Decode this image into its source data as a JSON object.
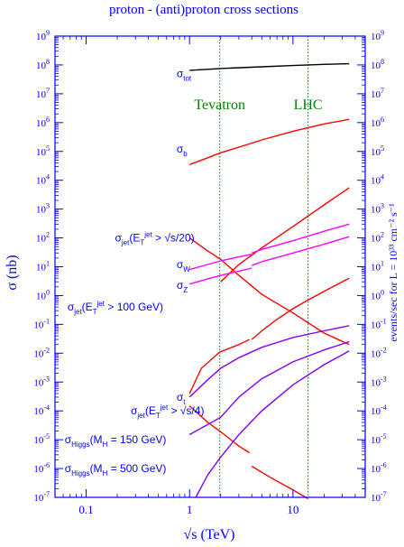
{
  "chart_data": {
    "type": "line",
    "title": "proton - (anti)proton cross sections",
    "xlabel": "√s   (TeV)",
    "ylabel_left": "σ  (nb)",
    "ylabel_right": "events/sec  for  L = 10³³ cm⁻² s⁻¹",
    "x_scale": "log",
    "y_scale": "log",
    "xlim": [
      0.05,
      50
    ],
    "ylim": [
      1e-07,
      1000000000.0
    ],
    "grid": false,
    "x_ticks": [
      {
        "value": 0.1,
        "label": "0.1"
      },
      {
        "value": 1,
        "label": "1"
      },
      {
        "value": 10,
        "label": "10"
      }
    ],
    "y_ticks_left": [
      {
        "value": 1000000000.0,
        "base": "10",
        "exp": "9"
      },
      {
        "value": 100000000.0,
        "base": "10",
        "exp": "8"
      },
      {
        "value": 10000000.0,
        "base": "10",
        "exp": "7"
      },
      {
        "value": 1000000.0,
        "base": "10",
        "exp": "6"
      },
      {
        "value": 100000.0,
        "base": "10",
        "exp": "5"
      },
      {
        "value": 10000.0,
        "base": "10",
        "exp": "4"
      },
      {
        "value": 1000.0,
        "base": "10",
        "exp": "3"
      },
      {
        "value": 100.0,
        "base": "10",
        "exp": "2"
      },
      {
        "value": 10.0,
        "base": "10",
        "exp": "1"
      },
      {
        "value": 1.0,
        "base": "10",
        "exp": "0"
      },
      {
        "value": 0.1,
        "base": "10",
        "exp": "-1"
      },
      {
        "value": 0.01,
        "base": "10",
        "exp": "-2"
      },
      {
        "value": 0.001,
        "base": "10",
        "exp": "-3"
      },
      {
        "value": 0.0001,
        "base": "10",
        "exp": "-4"
      },
      {
        "value": 1e-05,
        "base": "10",
        "exp": "-5"
      },
      {
        "value": 1e-06,
        "base": "10",
        "exp": "-6"
      },
      {
        "value": 1e-07,
        "base": "10",
        "exp": "-7"
      }
    ],
    "y_ticks_right": [
      {
        "value": 1000000000.0,
        "base": "10",
        "exp": "9"
      },
      {
        "value": 100000000.0,
        "base": "10",
        "exp": "8"
      },
      {
        "value": 10000000.0,
        "base": "10",
        "exp": "7"
      },
      {
        "value": 1000000.0,
        "base": "10",
        "exp": "6"
      },
      {
        "value": 100000.0,
        "base": "10",
        "exp": "5"
      },
      {
        "value": 10000.0,
        "base": "10",
        "exp": "4"
      },
      {
        "value": 1000.0,
        "base": "10",
        "exp": "3"
      },
      {
        "value": 100.0,
        "base": "10",
        "exp": "2"
      },
      {
        "value": 10.0,
        "base": "10",
        "exp": "1"
      },
      {
        "value": 1.0,
        "base": "10",
        "exp": "0"
      },
      {
        "value": 0.1,
        "base": "10",
        "exp": "-1"
      },
      {
        "value": 0.01,
        "base": "10",
        "exp": "-2"
      },
      {
        "value": 0.001,
        "base": "10",
        "exp": "-3"
      },
      {
        "value": 0.0001,
        "base": "10",
        "exp": "-4"
      },
      {
        "value": 1e-05,
        "base": "10",
        "exp": "-5"
      },
      {
        "value": 1e-06,
        "base": "10",
        "exp": "-6"
      },
      {
        "value": 1e-07,
        "base": "10",
        "exp": "-7"
      }
    ],
    "vertical_markers": [
      {
        "label": "Tevatron",
        "x": 1.96,
        "color": "#008000"
      },
      {
        "label": "LHC",
        "x": 14,
        "color": "#008000"
      }
    ],
    "series": [
      {
        "key": "tot",
        "color": "#000000",
        "points": [
          [
            1,
            65000000.0
          ],
          [
            2,
            75000000.0
          ],
          [
            5,
            86000000.0
          ],
          [
            10,
            95000000.0
          ],
          [
            20,
            105000000.0
          ],
          [
            35,
            110000000.0
          ]
        ]
      },
      {
        "key": "b",
        "color": "#ff0000",
        "points": [
          [
            1,
            35000.0
          ],
          [
            1.5,
            60000.0
          ],
          [
            2,
            90000.0
          ],
          [
            3,
            140000.0
          ],
          [
            5,
            250000.0
          ],
          [
            10,
            500000.0
          ],
          [
            20,
            900000.0
          ],
          [
            35,
            1300000.0
          ]
        ]
      },
      {
        "key": "jet_20_lhc",
        "color": "#ff0000",
        "points": [
          [
            2,
            3
          ],
          [
            3,
            12
          ],
          [
            5,
            45
          ],
          [
            10,
            250
          ],
          [
            20,
            1400
          ],
          [
            35,
            5500
          ]
        ]
      },
      {
        "key": "jet_20_tev",
        "color": "#ff0000",
        "points": [
          [
            1,
            100
          ],
          [
            1.5,
            35
          ],
          [
            2,
            18
          ],
          [
            3,
            5
          ],
          [
            5,
            1.1
          ],
          [
            10,
            0.25
          ],
          [
            20,
            0.05
          ],
          [
            35,
            0.02
          ]
        ]
      },
      {
        "key": "W_tev",
        "color": "#ff00ff",
        "points": [
          [
            1,
            8
          ],
          [
            1.5,
            12
          ],
          [
            2,
            16
          ],
          [
            3,
            22
          ],
          [
            4,
            27
          ]
        ]
      },
      {
        "key": "W_lhc",
        "color": "#ff00ff",
        "points": [
          [
            4,
            30
          ],
          [
            5,
            40
          ],
          [
            10,
            80
          ],
          [
            20,
            170
          ],
          [
            35,
            300
          ]
        ]
      },
      {
        "key": "Z_tev",
        "color": "#ff00ff",
        "points": [
          [
            1,
            2.5
          ],
          [
            1.5,
            3.8
          ],
          [
            2,
            5
          ],
          [
            3,
            7
          ],
          [
            4,
            9
          ]
        ]
      },
      {
        "key": "Z_lhc",
        "color": "#ff00ff",
        "points": [
          [
            4,
            11
          ],
          [
            5,
            15
          ],
          [
            10,
            30
          ],
          [
            20,
            60
          ],
          [
            35,
            110
          ]
        ]
      },
      {
        "key": "jet_100_tev",
        "color": "#ff0000",
        "points": [
          [
            1,
            0.0004
          ],
          [
            1.3,
            0.003
          ],
          [
            1.96,
            0.011
          ],
          [
            3,
            0.02
          ],
          [
            3.8,
            0.03
          ]
        ]
      },
      {
        "key": "jet_100_lhc",
        "color": "#ff0000",
        "points": [
          [
            4,
            0.03
          ],
          [
            5,
            0.06
          ],
          [
            7,
            0.15
          ],
          [
            10,
            0.35
          ],
          [
            14,
            0.7
          ],
          [
            20,
            1.4
          ],
          [
            35,
            4
          ]
        ]
      },
      {
        "key": "t",
        "color": "#8000ff",
        "points": [
          [
            1,
            0.0003
          ],
          [
            1.5,
            0.0012
          ],
          [
            2,
            0.003
          ],
          [
            3,
            0.007
          ],
          [
            5,
            0.016
          ],
          [
            10,
            0.035
          ],
          [
            20,
            0.06
          ],
          [
            35,
            0.09
          ]
        ]
      },
      {
        "key": "jet_4_tev",
        "color": "#ff0000",
        "points": [
          [
            1,
            0.00015
          ],
          [
            1.5,
            4e-05
          ],
          [
            1.96,
            2e-05
          ],
          [
            3,
            6e-06
          ],
          [
            3.8,
            3.5e-06
          ]
        ]
      },
      {
        "key": "jet_4_lhc",
        "color": "#ff0000",
        "points": [
          [
            4,
            1.2e-06
          ],
          [
            6,
            5e-07
          ],
          [
            10,
            1.8e-07
          ],
          [
            14,
            9e-08
          ]
        ]
      },
      {
        "key": "higgs_150",
        "color": "#8000ff",
        "points": [
          [
            1,
            1.5e-05
          ],
          [
            2,
            6e-05
          ],
          [
            3,
            0.0003
          ],
          [
            5,
            0.0013
          ],
          [
            10,
            0.005
          ],
          [
            20,
            0.013
          ],
          [
            35,
            0.025
          ]
        ]
      },
      {
        "key": "higgs_500",
        "color": "#8000ff",
        "points": [
          [
            1.15,
            1e-07
          ],
          [
            1.5,
            6e-07
          ],
          [
            2,
            2.5e-06
          ],
          [
            3,
            1.5e-05
          ],
          [
            5,
            0.0001
          ],
          [
            10,
            0.0008
          ],
          [
            20,
            0.004
          ],
          [
            35,
            0.012
          ]
        ]
      }
    ],
    "annotations": [
      {
        "key": "tot",
        "x": 0.75,
        "y": 50000000.0,
        "color": "#0000ff",
        "parts": [
          {
            "t": "σ"
          },
          {
            "t": "tot",
            "s": "sub"
          }
        ]
      },
      {
        "key": "b",
        "x": 0.75,
        "y": 120000.0,
        "color": "#0000ff",
        "parts": [
          {
            "t": "σ"
          },
          {
            "t": "b",
            "s": "sub"
          }
        ]
      },
      {
        "key": "jet_20",
        "x": 0.19,
        "y": 100,
        "color": "#0000ff",
        "parts": [
          {
            "t": "σ"
          },
          {
            "t": "jet",
            "s": "sub"
          },
          {
            "t": "(E"
          },
          {
            "t": "T",
            "s": "sub"
          },
          {
            "t": "jet",
            "s": "sup"
          },
          {
            "t": " > √s/20)"
          }
        ]
      },
      {
        "key": "W",
        "x": 0.75,
        "y": 12,
        "color": "#0000ff",
        "parts": [
          {
            "t": "σ"
          },
          {
            "t": "W",
            "s": "sub"
          }
        ]
      },
      {
        "key": "Z",
        "x": 0.75,
        "y": 2.3,
        "color": "#0000ff",
        "parts": [
          {
            "t": "σ"
          },
          {
            "t": "Z",
            "s": "sub"
          }
        ]
      },
      {
        "key": "jet_100",
        "x": 0.066,
        "y": 0.4,
        "color": "#0000ff",
        "parts": [
          {
            "t": "σ"
          },
          {
            "t": "jet",
            "s": "sub"
          },
          {
            "t": "(E"
          },
          {
            "t": "T",
            "s": "sub"
          },
          {
            "t": "jet",
            "s": "sup"
          },
          {
            "t": " > 100 GeV)"
          }
        ]
      },
      {
        "key": "t",
        "x": 0.75,
        "y": 0.0003,
        "color": "#0000ff",
        "parts": [
          {
            "t": "σ"
          },
          {
            "t": "t",
            "s": "sub"
          }
        ]
      },
      {
        "key": "jet_4",
        "x": 0.27,
        "y": 0.0001,
        "color": "#0000ff",
        "parts": [
          {
            "t": "σ"
          },
          {
            "t": "jet",
            "s": "sub"
          },
          {
            "t": "(E"
          },
          {
            "t": "T",
            "s": "sub"
          },
          {
            "t": "jet",
            "s": "sup"
          },
          {
            "t": " > √s/4)"
          }
        ]
      },
      {
        "key": "higgs_150",
        "x": 0.062,
        "y": 1e-05,
        "color": "#0000ff",
        "parts": [
          {
            "t": "σ"
          },
          {
            "t": "Higgs",
            "s": "sub"
          },
          {
            "t": "(M"
          },
          {
            "t": "H",
            "s": "sub"
          },
          {
            "t": " = 150 GeV)"
          }
        ]
      },
      {
        "key": "higgs_500",
        "x": 0.062,
        "y": 1e-06,
        "color": "#0000ff",
        "parts": [
          {
            "t": "σ"
          },
          {
            "t": "Higgs",
            "s": "sub"
          },
          {
            "t": "(M"
          },
          {
            "t": "H",
            "s": "sub"
          },
          {
            "t": " = 500 GeV)"
          }
        ]
      }
    ]
  }
}
